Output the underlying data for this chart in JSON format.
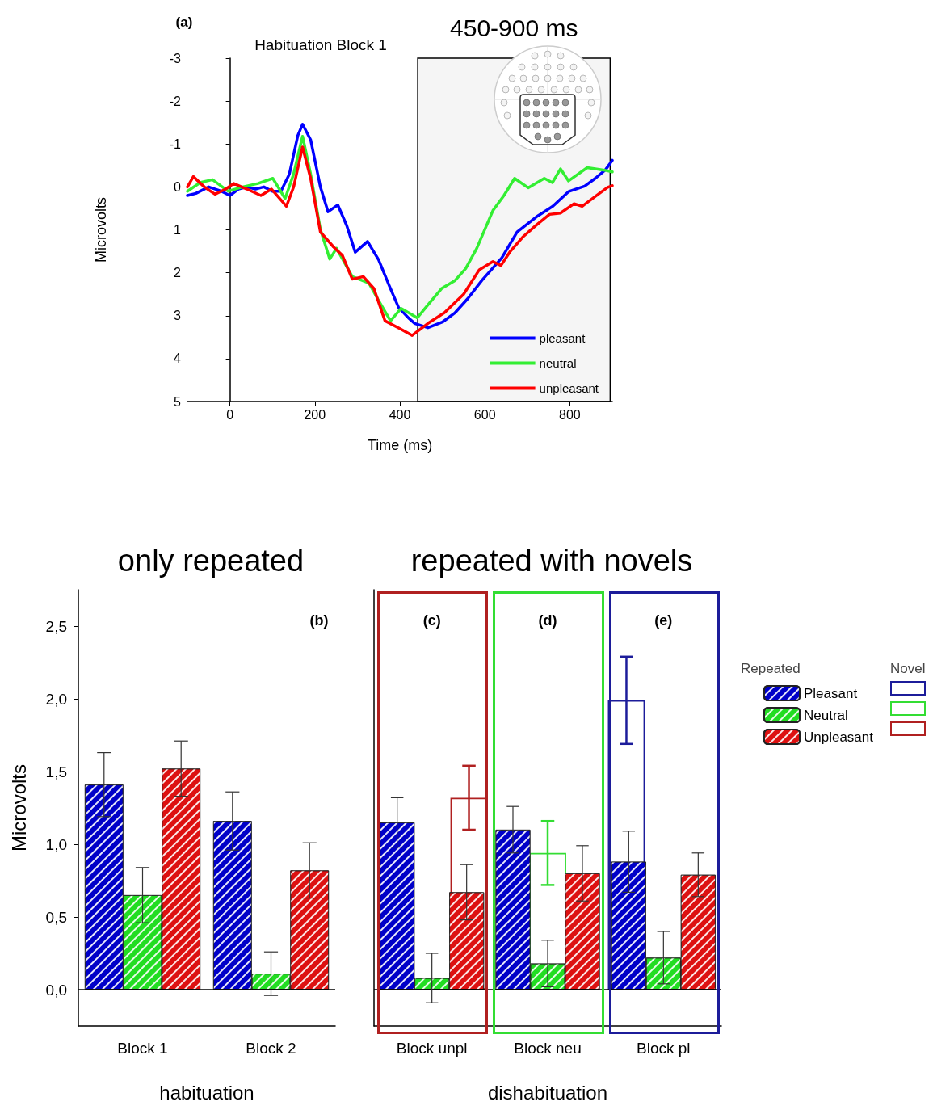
{
  "chart_data": [
    {
      "type": "line",
      "xlabel": "Time (ms)",
      "ylabel": "Microvolts",
      "annotations": [
        "(a)",
        "Habituation Block 1"
      ],
      "xlim": [
        -100,
        900
      ],
      "xticks": [
        0,
        200,
        400,
        600,
        800
      ],
      "ylim": [
        5,
        -3
      ],
      "yticks": [
        -3,
        -2,
        -1,
        0,
        1,
        2,
        3,
        4,
        5
      ],
      "legend": "bottom right",
      "marker": "none",
      "line_style": "solid",
      "bands": [
        {
          "axis": "x",
          "from": 442,
          "to": 895,
          "label": "450-900 ms",
          "color": "#000000"
        }
      ],
      "series": [
        {
          "name": "pleasant",
          "color": "#0000ff",
          "x": [
            -100,
            -80,
            -50,
            -20,
            0,
            20,
            40,
            60,
            80,
            100,
            120,
            140,
            160,
            171,
            190,
            213,
            231,
            254,
            275,
            295,
            324,
            350,
            375,
            397,
            420,
            435,
            466,
            500,
            530,
            560,
            593,
            640,
            676,
            721,
            760,
            797,
            835,
            860,
            884,
            900
          ],
          "values": [
            0.2,
            0.15,
            0.0,
            0.1,
            0.2,
            0.05,
            0.0,
            0.05,
            0.0,
            0.1,
            0.1,
            -0.3,
            -1.2,
            -1.46,
            -1.1,
            0.0,
            0.58,
            0.42,
            0.9,
            1.52,
            1.27,
            1.7,
            2.3,
            2.81,
            3.05,
            3.18,
            3.28,
            3.15,
            2.93,
            2.6,
            2.18,
            1.65,
            1.05,
            0.7,
            0.45,
            0.11,
            -0.02,
            -0.2,
            -0.4,
            -0.62
          ]
        },
        {
          "name": "neutral",
          "color": "#33ee33",
          "x": [
            -100,
            -70,
            -41,
            -4,
            30,
            66,
            101,
            130,
            150,
            171,
            190,
            213,
            235,
            251,
            288,
            327,
            352,
            378,
            403,
            441,
            470,
            498,
            530,
            555,
            581,
            619,
            645,
            670,
            702,
            740,
            759,
            778,
            797,
            841,
            882,
            900
          ],
          "values": [
            0.1,
            -0.1,
            -0.17,
            0.1,
            0.0,
            -0.08,
            -0.2,
            0.27,
            -0.3,
            -1.18,
            -0.3,
            0.99,
            1.68,
            1.43,
            2.09,
            2.24,
            2.68,
            3.12,
            2.83,
            3.05,
            2.7,
            2.37,
            2.18,
            1.9,
            1.43,
            0.55,
            0.2,
            -0.2,
            0.02,
            -0.2,
            -0.1,
            -0.42,
            -0.14,
            -0.45,
            -0.39,
            -0.35
          ]
        },
        {
          "name": "unpleasant",
          "color": "#ff0000",
          "x": [
            -100,
            -86,
            -60,
            -35,
            -10,
            9,
            40,
            73,
            98,
            120,
            133,
            150,
            171,
            190,
            213,
            244,
            265,
            288,
            314,
            339,
            365,
            400,
            429,
            466,
            505,
            550,
            587,
            619,
            638,
            660,
            689,
            720,
            752,
            778,
            810,
            829,
            867,
            889,
            900
          ],
          "values": [
            0.0,
            -0.24,
            0.0,
            0.17,
            0.05,
            -0.08,
            0.05,
            0.2,
            0.05,
            0.3,
            0.45,
            0.0,
            -0.93,
            -0.2,
            1.05,
            1.4,
            1.6,
            2.15,
            2.09,
            2.37,
            3.12,
            3.3,
            3.46,
            3.18,
            2.93,
            2.5,
            1.93,
            1.74,
            1.83,
            1.5,
            1.17,
            0.9,
            0.64,
            0.61,
            0.39,
            0.45,
            0.17,
            0.01,
            -0.03
          ]
        }
      ]
    },
    {
      "type": "bar",
      "title": "only repeated",
      "xlabel": "habituation",
      "ylabel": "Microvolts",
      "annotations": [
        "(b)"
      ],
      "categories": [
        "Block 1",
        "Block 2"
      ],
      "ylim": [
        -0.25,
        2.75
      ],
      "yticks": [
        {
          "value": 0,
          "label": "0,0"
        },
        {
          "value": 0.5,
          "label": "0,5"
        },
        {
          "value": 1,
          "label": "1,0"
        },
        {
          "value": 1.5,
          "label": "1,5"
        },
        {
          "value": 2,
          "label": "2,0"
        },
        {
          "value": 2.5,
          "label": "2,5"
        }
      ],
      "ref_lines": [
        {
          "axis": "y",
          "value": 0,
          "color": "#000000"
        }
      ],
      "series": [
        {
          "color": "#0000c8",
          "values": [
            1.41,
            1.16
          ],
          "errors": [
            0.22,
            0.2
          ]
        },
        {
          "color": "#22dd22",
          "values": [
            0.65,
            0.11
          ],
          "errors": [
            0.19,
            0.15
          ]
        },
        {
          "color": "#dd1111",
          "values": [
            1.52,
            0.82
          ],
          "errors": [
            0.19,
            0.19
          ]
        }
      ]
    },
    {
      "type": "bar",
      "title": "repeated with novels",
      "xlabel": "dishabituation",
      "legend": "right",
      "legend_title": "Repeated",
      "tick_labels": "x",
      "annotations": [
        "(c)",
        "(d)",
        "(e)",
        "Novel"
      ],
      "categories": [
        "Block unpl",
        "Block neu",
        "Block pl"
      ],
      "ylim": [
        -0.25,
        2.75
      ],
      "ref_lines": [
        {
          "axis": "y",
          "value": 0,
          "color": "#000000"
        }
      ],
      "series": [
        {
          "name": "Pleasant",
          "color": "#0000c8",
          "values": [
            1.15,
            1.1,
            0.88
          ],
          "errors": [
            0.17,
            0.16,
            0.21
          ]
        },
        {
          "name": "Neutral",
          "color": "#22dd22",
          "values": [
            0.08,
            0.18,
            0.22
          ],
          "errors": [
            0.17,
            0.16,
            0.18
          ]
        },
        {
          "name": "Unpleasant",
          "color": "#dd1111",
          "values": [
            0.67,
            0.8,
            0.79
          ],
          "errors": [
            0.19,
            0.19,
            0.15
          ]
        },
        {
          "color": "#1c1c9a",
          "values": [
            null,
            null,
            1.99
          ],
          "errors": [
            null,
            null,
            0.3
          ]
        },
        {
          "color": "#33dd33",
          "values": [
            null,
            0.94,
            null
          ],
          "errors": [
            null,
            0.22,
            null
          ]
        },
        {
          "color": "#b02020",
          "values": [
            1.32,
            null,
            null
          ],
          "errors": [
            0.22,
            null,
            null
          ]
        }
      ]
    }
  ]
}
